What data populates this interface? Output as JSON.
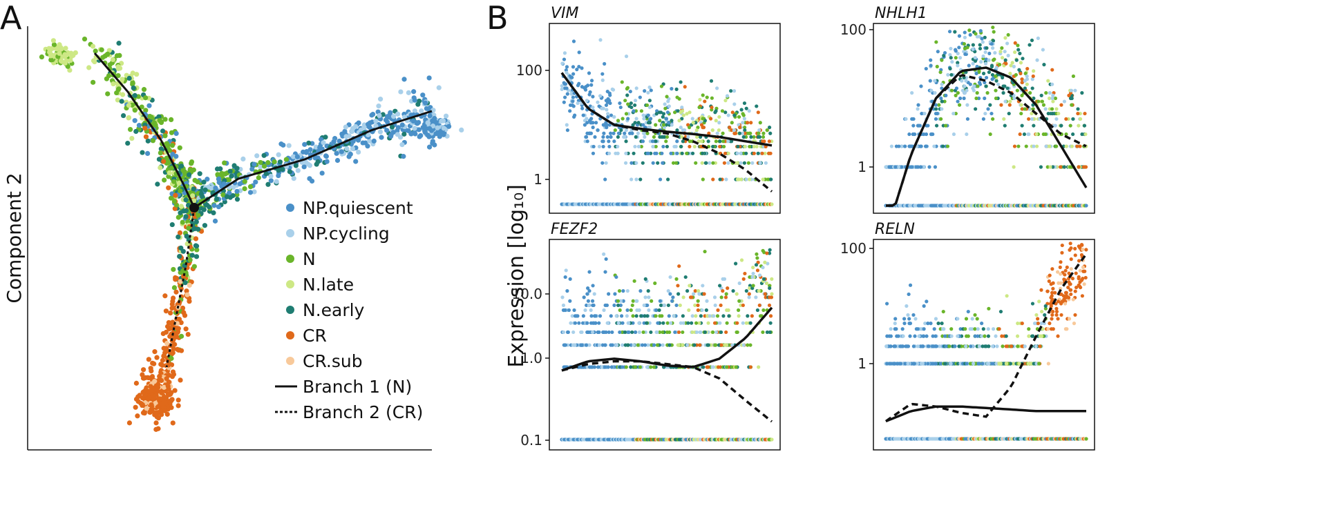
{
  "panels": {
    "a": "A",
    "b": "B"
  },
  "colors": {
    "NP.quiescent": "#4a90c8",
    "NP.cycling": "#a9d0ea",
    "N": "#6ab52a",
    "N.late": "#cde885",
    "N.early": "#1f7d72",
    "CR": "#e0691a",
    "CR.sub": "#f8c99a",
    "line": "#111111"
  },
  "legend": {
    "items": [
      "NP.quiescent",
      "NP.cycling",
      "N",
      "N.late",
      "N.early",
      "CR",
      "CR.sub"
    ],
    "branch1": "Branch 1 (N)",
    "branch2": "Branch 2 (CR)"
  },
  "chart_data": [
    {
      "type": "scatter",
      "panel": "A",
      "xlabel": "",
      "ylabel": "Component 2",
      "branch_point": [
        0.0,
        0.0
      ],
      "trajectory": {
        "stem": [
          [
            -1.8,
            3.2
          ],
          [
            -1.2,
            2.4
          ],
          [
            -0.6,
            1.4
          ],
          [
            -0.2,
            0.5
          ],
          [
            0.0,
            0.0
          ]
        ],
        "branch1": [
          [
            0.0,
            0.0
          ],
          [
            0.8,
            0.6
          ],
          [
            2.0,
            1.0
          ],
          [
            3.2,
            1.6
          ],
          [
            4.3,
            2.0
          ]
        ],
        "branch2": [
          [
            0.0,
            0.0
          ],
          [
            -0.15,
            -1.2
          ],
          [
            -0.35,
            -2.4
          ],
          [
            -0.5,
            -3.3
          ]
        ]
      },
      "legend": [
        "NP.quiescent",
        "NP.cycling",
        "N",
        "N.late",
        "N.early",
        "CR",
        "CR.sub",
        "Branch 1 (N)",
        "Branch 2 (CR)"
      ],
      "legend_position": "bottom-right"
    },
    {
      "type": "scatter",
      "gene": "VIM",
      "yscale": "log",
      "yticks": [
        "100",
        "1"
      ],
      "branch1_fit": [
        90,
        20,
        10,
        8.5,
        7.5,
        6.8,
        6,
        5,
        4.2
      ],
      "branch2_fit": [
        90,
        20,
        10,
        8,
        7,
        5,
        3,
        1.5,
        0.6
      ],
      "grid": false
    },
    {
      "type": "scatter",
      "gene": "NHLH1",
      "yscale": "log",
      "yticks": [
        "100",
        "1"
      ],
      "branch1_fit": [
        0.1,
        1.5,
        10,
        25,
        28,
        20,
        8,
        2,
        0.5
      ],
      "branch2_fit": [
        0.1,
        1.5,
        10,
        22,
        18,
        12,
        6,
        3,
        2
      ],
      "grid": false
    },
    {
      "type": "scatter",
      "gene": "FEZF2",
      "yscale": "log",
      "yticks": [
        "10.0",
        "1.0",
        "0.1"
      ],
      "ylabel": "Expression [log₁₀]",
      "branch1_fit": [
        0.9,
        1.2,
        1.3,
        1.2,
        1.05,
        1.0,
        1.3,
        2.5,
        6.5
      ],
      "branch2_fit": [
        0.9,
        1.1,
        1.2,
        1.2,
        1.1,
        1.0,
        0.7,
        0.35,
        0.18
      ],
      "grid": false
    },
    {
      "type": "scatter",
      "gene": "RELN",
      "yscale": "log",
      "yticks": [
        "100",
        "1"
      ],
      "branch1_fit": [
        0.1,
        0.15,
        0.18,
        0.18,
        0.17,
        0.16,
        0.15,
        0.15,
        0.15
      ],
      "branch2_fit": [
        0.1,
        0.2,
        0.18,
        0.14,
        0.12,
        0.4,
        3,
        20,
        80
      ],
      "grid": false
    }
  ]
}
